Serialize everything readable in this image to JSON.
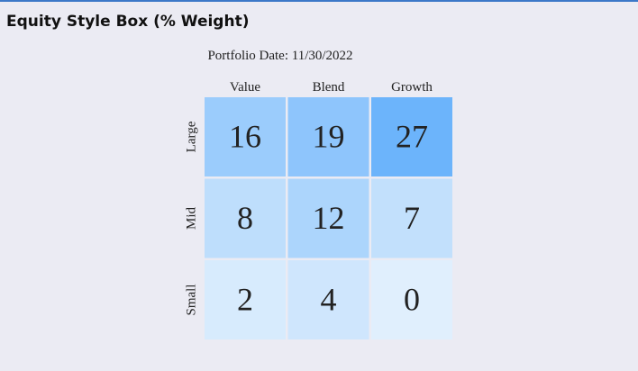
{
  "chart_data": {
    "type": "heatmap",
    "title": "Equity Style Box (% Weight)",
    "subtitle": "Portfolio Date: 11/30/2022",
    "categories": [
      "Value",
      "Blend",
      "Growth"
    ],
    "rows": [
      "Large",
      "Mid",
      "Small"
    ],
    "values": [
      [
        16,
        19,
        27
      ],
      [
        8,
        12,
        7
      ],
      [
        2,
        4,
        0
      ]
    ],
    "color_scale": [
      "#e0effd",
      "#6cb4fb"
    ]
  }
}
